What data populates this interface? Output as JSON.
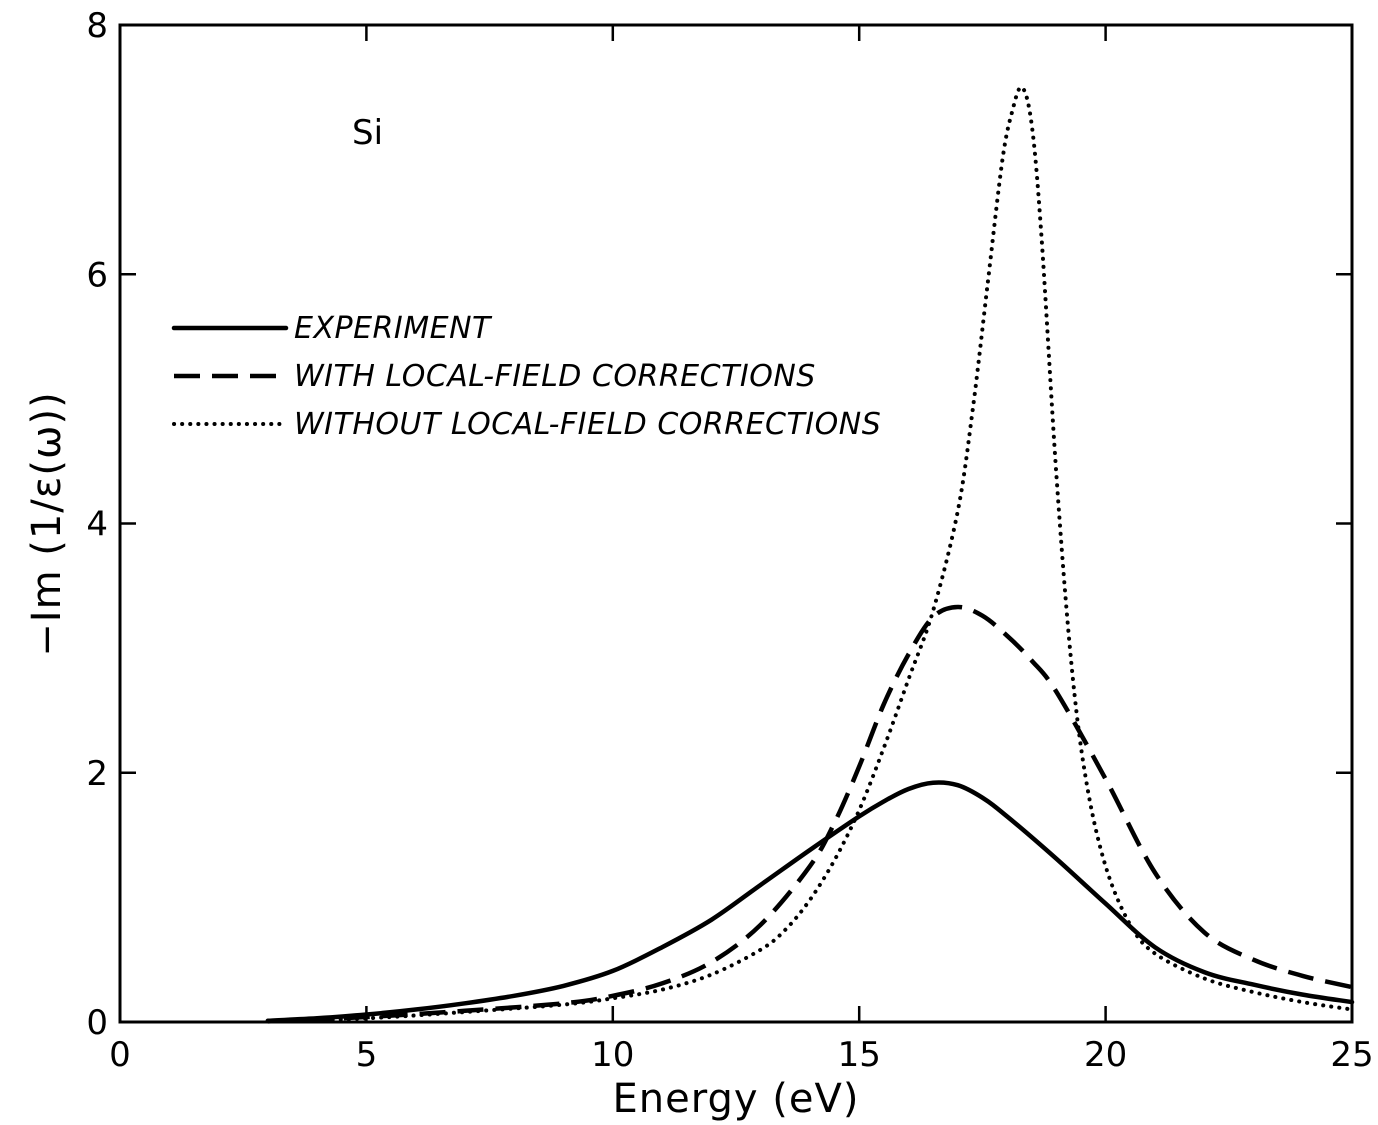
{
  "chart_data": {
    "type": "line",
    "xlabel": "Energy (eV)",
    "ylabel": "−Im (1/ε(ω))",
    "xlim": [
      0,
      25
    ],
    "ylim": [
      0,
      8
    ],
    "xticks": [
      "0",
      "5",
      "10",
      "15",
      "20",
      "25"
    ],
    "yticks": [
      "0",
      "2",
      "4",
      "6",
      "8"
    ],
    "annotation": "Si",
    "grid": false,
    "legend_position": "upper-left",
    "series": [
      {
        "name": "EXPERIMENT",
        "style": "solid",
        "x": [
          3,
          4,
          5,
          6,
          7,
          8,
          9,
          10,
          11,
          12,
          13,
          14,
          15,
          15.5,
          16,
          16.5,
          17,
          17.5,
          18,
          19,
          20,
          21,
          22,
          23,
          24,
          25
        ],
        "y": [
          0.01,
          0.03,
          0.06,
          0.1,
          0.15,
          0.21,
          0.29,
          0.41,
          0.6,
          0.82,
          1.1,
          1.38,
          1.65,
          1.77,
          1.87,
          1.92,
          1.9,
          1.8,
          1.65,
          1.31,
          0.95,
          0.6,
          0.4,
          0.3,
          0.22,
          0.16
        ]
      },
      {
        "name": "WITH LOCAL-FIELD CORRECTIONS",
        "style": "dashed",
        "x": [
          3,
          5,
          7,
          9,
          10,
          11,
          12,
          13,
          14,
          14.5,
          15,
          15.5,
          16,
          16.5,
          17,
          17.5,
          18,
          18.5,
          19,
          20,
          21,
          22,
          23,
          24,
          25
        ],
        "y": [
          0.005,
          0.04,
          0.09,
          0.15,
          0.21,
          0.31,
          0.48,
          0.78,
          1.25,
          1.6,
          2.05,
          2.55,
          2.95,
          3.25,
          3.33,
          3.26,
          3.1,
          2.9,
          2.65,
          1.95,
          1.2,
          0.72,
          0.5,
          0.37,
          0.28
        ]
      },
      {
        "name": "WITHOUT LOCAL-FIELD CORRECTIONS",
        "style": "dotted",
        "x": [
          3,
          5,
          7,
          9,
          10,
          11,
          12,
          13,
          13.5,
          14,
          14.5,
          15,
          15.5,
          16,
          16.5,
          17,
          17.3,
          17.6,
          17.9,
          18.1,
          18.3,
          18.5,
          18.7,
          19,
          19.3,
          19.6,
          20,
          20.5,
          21,
          22,
          23,
          24,
          25
        ],
        "y": [
          0.004,
          0.03,
          0.08,
          0.14,
          0.19,
          0.26,
          0.38,
          0.58,
          0.74,
          0.98,
          1.3,
          1.7,
          2.2,
          2.75,
          3.3,
          4.1,
          4.9,
          5.9,
          6.9,
          7.3,
          7.5,
          7.2,
          6.3,
          4.4,
          2.9,
          1.95,
          1.25,
          0.78,
          0.55,
          0.35,
          0.24,
          0.16,
          0.1
        ]
      }
    ]
  }
}
